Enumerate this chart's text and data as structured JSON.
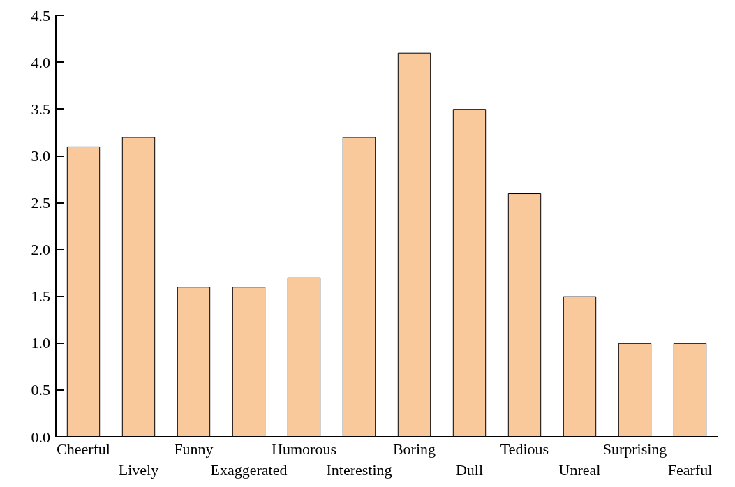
{
  "chart_data": {
    "type": "bar",
    "categories": [
      "Cheerful",
      "Lively",
      "Funny",
      "Exaggerated",
      "Humorous",
      "Interesting",
      "Boring",
      "Dull",
      "Tedious",
      "Unreal",
      "Surprising",
      "Fearful"
    ],
    "values": [
      3.1,
      3.2,
      1.6,
      1.6,
      1.7,
      3.2,
      4.1,
      3.5,
      2.6,
      1.5,
      1.0,
      1.0
    ],
    "color": "#f9c89b",
    "ylim": [
      0,
      4.5
    ],
    "yticks": [
      {
        "value": 0,
        "label": "0.0"
      },
      {
        "value": 0.5,
        "label": "0.5"
      },
      {
        "value": 1,
        "label": "1.0"
      },
      {
        "value": 1.5,
        "label": "1.5"
      },
      {
        "value": 2,
        "label": "2.0"
      },
      {
        "value": 2.5,
        "label": "2.5"
      },
      {
        "value": 3,
        "label": "3.0"
      },
      {
        "value": 3.5,
        "label": "3.5"
      },
      {
        "value": 4,
        "label": "4.0"
      },
      {
        "value": 4.5,
        "label": "4.5"
      }
    ],
    "grid": false
  }
}
